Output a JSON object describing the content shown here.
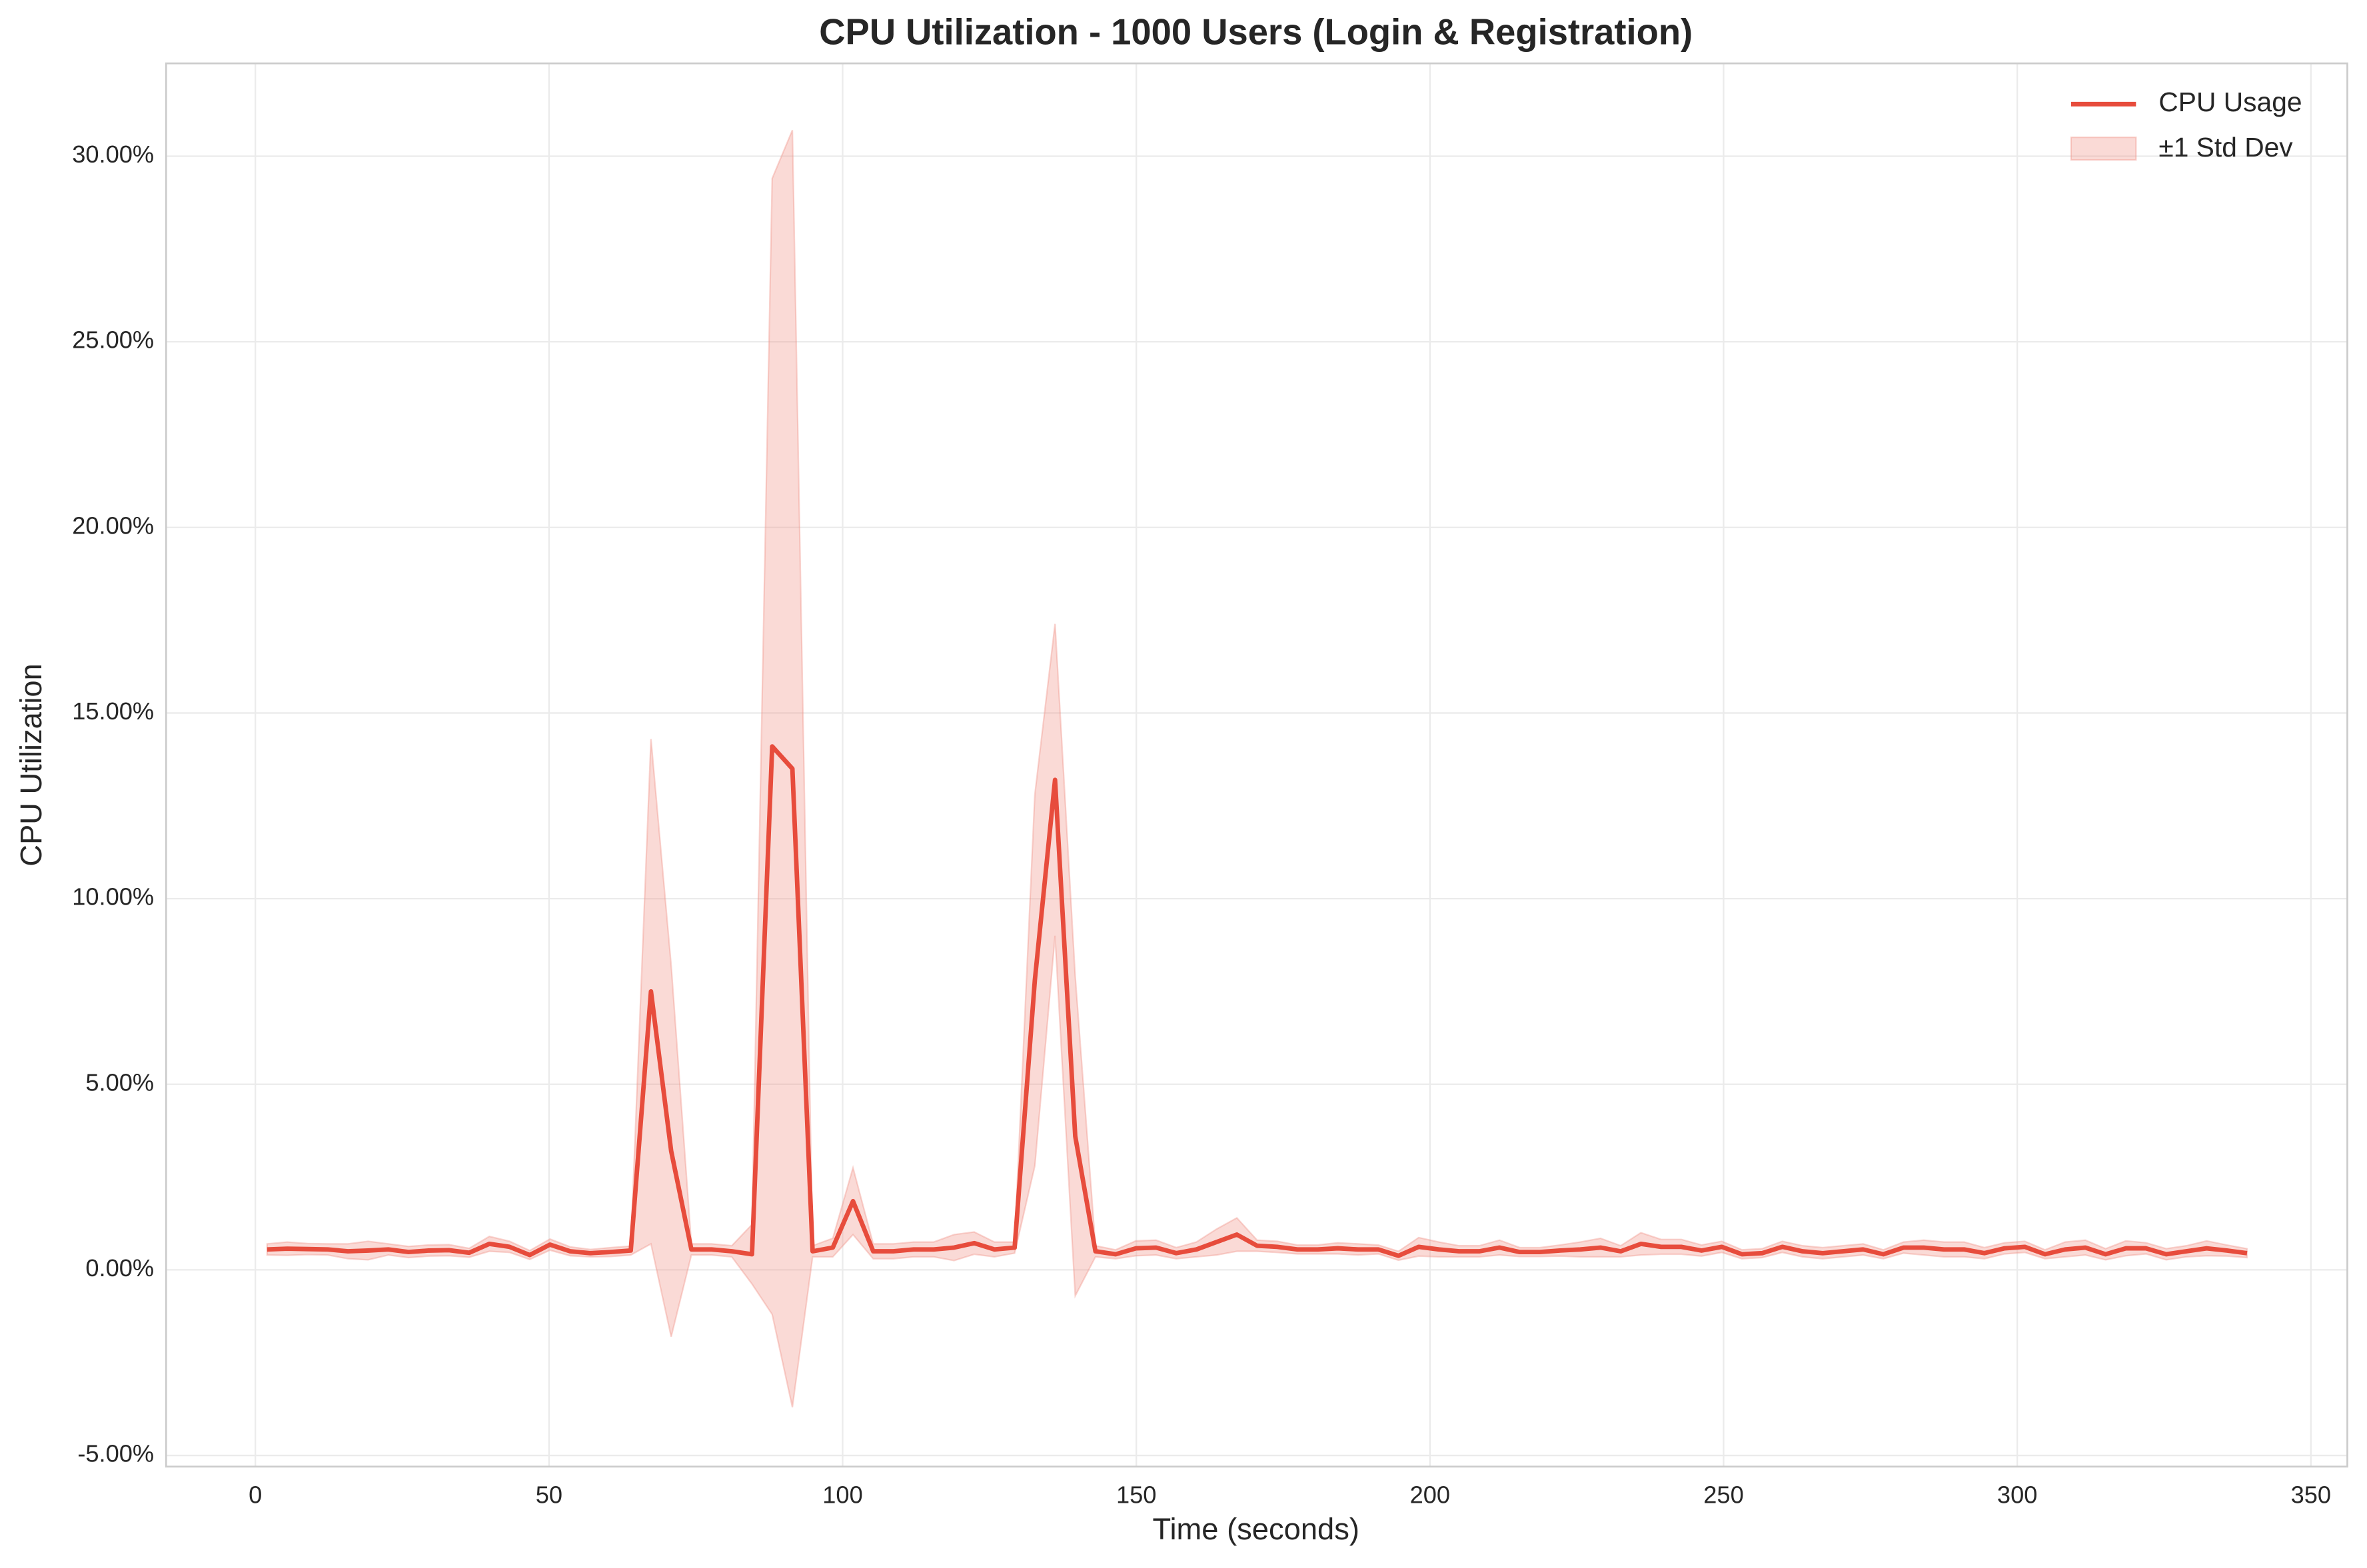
{
  "chart_data": {
    "type": "line",
    "title": "CPU Utilization - 1000 Users (Login & Registration)",
    "x_label": "Time (seconds)",
    "y_label": "CPU Utilization",
    "x": [
      2,
      5.44,
      8.88,
      12.32,
      15.76,
      19.2,
      22.64,
      26.08,
      29.52,
      32.96,
      36.4,
      39.84,
      43.28,
      46.72,
      50.16,
      53.6,
      57.04,
      60.48,
      63.92,
      67.36,
      70.8,
      74.24,
      77.68,
      81.12,
      84.56,
      88,
      91.44,
      94.88,
      98.32,
      101.76,
      105.2,
      108.64,
      112.08,
      115.52,
      118.96,
      122.4,
      125.84,
      129.28,
      132.72,
      136.16,
      139.6,
      143.04,
      146.48,
      149.92,
      153.36,
      156.8,
      160.24,
      163.68,
      167.12,
      170.56,
      174,
      177.44,
      180.88,
      184.32,
      187.76,
      191.2,
      194.64,
      198.08,
      201.52,
      204.96,
      208.4,
      211.84,
      215.28,
      218.72,
      222.16,
      225.6,
      229.04,
      232.48,
      235.92,
      239.36,
      242.8,
      246.24,
      249.68,
      253.12,
      256.56,
      260,
      263.44,
      266.88,
      270.32,
      273.76,
      277.2,
      280.64,
      284.08,
      287.52,
      290.96,
      294.4,
      297.84,
      301.28,
      304.72,
      308.16,
      311.6,
      315.04,
      318.48,
      321.92,
      325.36,
      328.8,
      332.24,
      335.68,
      339.12
    ],
    "series": [
      {
        "name": "CPU Usage",
        "color": "#e74c3c",
        "values": [
          0.55,
          0.57,
          0.56,
          0.55,
          0.5,
          0.52,
          0.55,
          0.48,
          0.52,
          0.53,
          0.46,
          0.7,
          0.62,
          0.4,
          0.68,
          0.5,
          0.45,
          0.48,
          0.52,
          7.5,
          3.2,
          0.55,
          0.55,
          0.5,
          0.42,
          14.1,
          13.5,
          0.5,
          0.6,
          1.85,
          0.5,
          0.5,
          0.55,
          0.55,
          0.6,
          0.72,
          0.55,
          0.6,
          7.8,
          13.2,
          3.6,
          0.5,
          0.42,
          0.58,
          0.6,
          0.45,
          0.55,
          0.75,
          0.95,
          0.65,
          0.62,
          0.55,
          0.55,
          0.58,
          0.55,
          0.55,
          0.38,
          0.62,
          0.55,
          0.5,
          0.5,
          0.6,
          0.48,
          0.48,
          0.52,
          0.55,
          0.6,
          0.5,
          0.7,
          0.62,
          0.62,
          0.52,
          0.62,
          0.42,
          0.45,
          0.62,
          0.5,
          0.45,
          0.5,
          0.55,
          0.42,
          0.6,
          0.6,
          0.55,
          0.55,
          0.45,
          0.58,
          0.62,
          0.42,
          0.55,
          0.6,
          0.42,
          0.58,
          0.58,
          0.42,
          0.5,
          0.58,
          0.52,
          0.45
        ]
      }
    ],
    "std": {
      "name": "±1 Std Dev",
      "color": "#f1948a",
      "values": [
        0.15,
        0.18,
        0.15,
        0.15,
        0.2,
        0.25,
        0.15,
        0.15,
        0.15,
        0.15,
        0.12,
        0.2,
        0.15,
        0.12,
        0.15,
        0.12,
        0.1,
        0.12,
        0.12,
        6.8,
        5,
        0.15,
        0.15,
        0.15,
        0.8,
        15.3,
        17.2,
        0.15,
        0.25,
        0.9,
        0.2,
        0.2,
        0.2,
        0.2,
        0.35,
        0.3,
        0.2,
        0.15,
        5,
        4.2,
        4.3,
        0.15,
        0.12,
        0.2,
        0.2,
        0.15,
        0.2,
        0.35,
        0.45,
        0.15,
        0.15,
        0.12,
        0.12,
        0.15,
        0.15,
        0.12,
        0.12,
        0.25,
        0.2,
        0.15,
        0.15,
        0.2,
        0.12,
        0.12,
        0.15,
        0.2,
        0.25,
        0.15,
        0.3,
        0.2,
        0.2,
        0.15,
        0.15,
        0.12,
        0.12,
        0.15,
        0.15,
        0.15,
        0.15,
        0.15,
        0.12,
        0.15,
        0.2,
        0.2,
        0.2,
        0.15,
        0.15,
        0.15,
        0.12,
        0.2,
        0.2,
        0.15,
        0.2,
        0.15,
        0.15,
        0.15,
        0.2,
        0.15,
        0.12
      ]
    },
    "xlim": [
      -15.2,
      356.2
    ],
    "ylim": [
      -5.3,
      32.5
    ],
    "xticks": [
      0,
      50,
      100,
      150,
      200,
      250,
      300,
      350
    ],
    "yticks": [
      {
        "value": -5,
        "label": "-5.00%"
      },
      {
        "value": 0,
        "label": "0.00%"
      },
      {
        "value": 5,
        "label": "5.00%"
      },
      {
        "value": 10,
        "label": "10.00%"
      },
      {
        "value": 15,
        "label": "15.00%"
      },
      {
        "value": 20,
        "label": "20.00%"
      },
      {
        "value": 25,
        "label": "25.00%"
      },
      {
        "value": 30,
        "label": "30.00%"
      }
    ],
    "grid": true,
    "legend": "upper right"
  }
}
